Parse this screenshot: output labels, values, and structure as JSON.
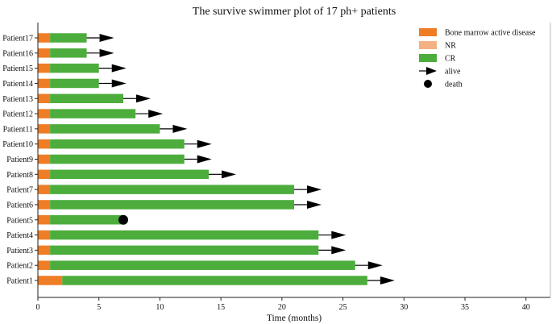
{
  "chart_data": {
    "type": "bar",
    "title": "The survive swimmer plot of 17 ph+ patients",
    "xlabel": "Time (months)",
    "ylabel": "",
    "xlim": [
      0,
      42
    ],
    "xticks": [
      0,
      5,
      10,
      15,
      20,
      25,
      30,
      35,
      40
    ],
    "grid": false,
    "legend_position": "top-right",
    "categories": [
      "Patient1",
      "Patient2",
      "Patient3",
      "Patient4",
      "Patient5",
      "Patient6",
      "Patient7",
      "Patient8",
      "Patient9",
      "Patient10",
      "Patient11",
      "Patient12",
      "Patient13",
      "Patient14",
      "Patient15",
      "Patient16",
      "Patient17"
    ],
    "series": [
      {
        "name": "Bone marrow active disease",
        "color": "#ee7d26",
        "values": [
          2,
          1,
          1,
          1,
          1,
          1,
          1,
          1,
          1,
          1,
          1,
          1,
          1,
          1,
          1,
          1,
          1
        ]
      },
      {
        "name": "NR",
        "color": "#f4b183",
        "values": [
          0,
          0,
          0,
          0,
          0,
          0,
          0,
          0,
          0,
          0,
          0,
          0,
          0,
          0,
          0,
          0,
          0
        ]
      },
      {
        "name": "CR",
        "color": "#4cad3c",
        "values": [
          25,
          25,
          22,
          22,
          6,
          20,
          20,
          13,
          11,
          11,
          9,
          7,
          6,
          4,
          4,
          3,
          3
        ]
      }
    ],
    "markers": [
      {
        "name": "alive",
        "symbol": "arrow",
        "patients": [
          "Patient1",
          "Patient2",
          "Patient3",
          "Patient4",
          "Patient6",
          "Patient7",
          "Patient8",
          "Patient9",
          "Patient10",
          "Patient11",
          "Patient12",
          "Patient13",
          "Patient14",
          "Patient15",
          "Patient16",
          "Patient17"
        ]
      },
      {
        "name": "death",
        "symbol": "dot",
        "patients": [
          "Patient5"
        ]
      }
    ]
  }
}
